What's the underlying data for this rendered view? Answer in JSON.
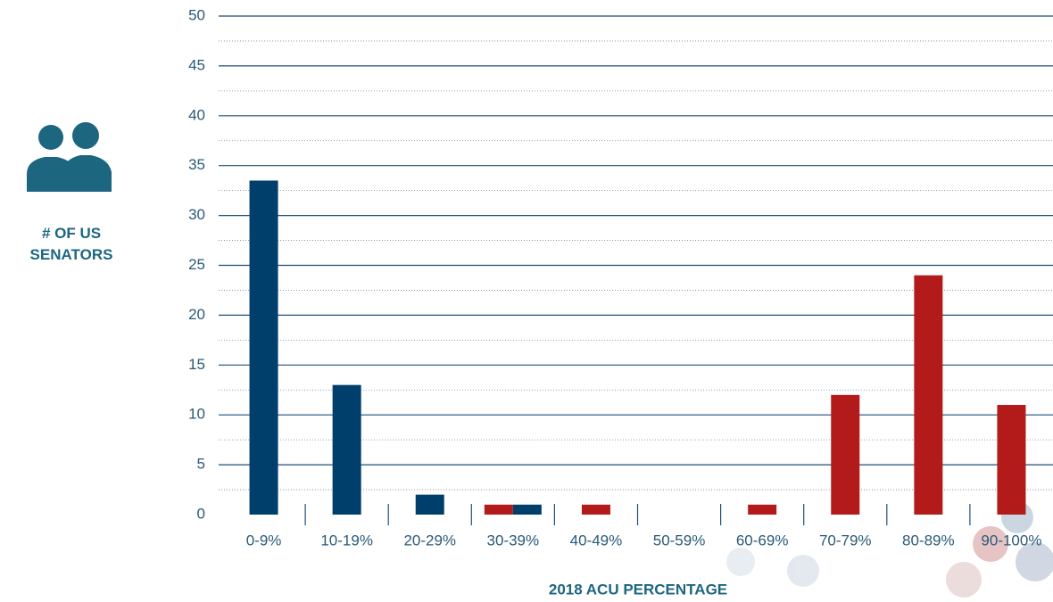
{
  "chart_data": {
    "type": "bar",
    "x_label": "2018 ACU PERCENTAGE",
    "y_label": "# OF US SENATORS",
    "categories": [
      "0-9%",
      "10-19%",
      "20-29%",
      "30-39%",
      "40-49%",
      "50-59%",
      "60-69%",
      "70-79%",
      "80-89%",
      "90-100%"
    ],
    "series": [
      {
        "color": "#b31b1b",
        "values": [
          0,
          0,
          0,
          1,
          1,
          0,
          1,
          12,
          24,
          11
        ]
      },
      {
        "color": "#003f6b",
        "values": [
          33.5,
          13,
          2,
          1,
          0,
          0,
          0,
          0,
          0,
          0
        ]
      }
    ],
    "ylim": [
      0,
      50
    ],
    "yticks": [
      0,
      5,
      10,
      15,
      20,
      25,
      30,
      35,
      40,
      45,
      50
    ],
    "minor_yticks": [
      2.5,
      7.5,
      12.5,
      17.5,
      22.5,
      27.5,
      32.5,
      37.5,
      42.5,
      47.5
    ],
    "grid": true
  }
}
